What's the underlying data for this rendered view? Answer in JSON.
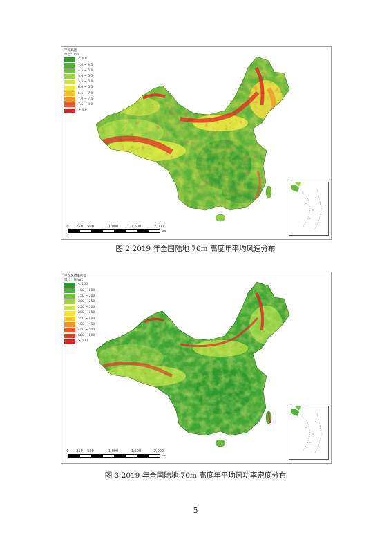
{
  "figure2": {
    "caption": "图 2   2019 年全国陆地 70m 高度年平均风速分布",
    "legend_title": "平均风速",
    "legend_unit": "单位：m/s",
    "legend": [
      {
        "label": "< 4.0",
        "color": "#2e9a2e"
      },
      {
        "label": "4.0 ~ 4.5",
        "color": "#4fb13a"
      },
      {
        "label": "4.5 ~ 5.0",
        "color": "#73c23c"
      },
      {
        "label": "5.0 ~ 5.5",
        "color": "#9fd43e"
      },
      {
        "label": "5.5 ~ 6.0",
        "color": "#cde33f"
      },
      {
        "label": "6.0 ~ 6.5",
        "color": "#f2e43b"
      },
      {
        "label": "6.5 ~ 7.0",
        "color": "#f5c02d"
      },
      {
        "label": "7.0 ~ 7.5",
        "color": "#f0922b"
      },
      {
        "label": "7.5 ~ 8.0",
        "color": "#e8592a"
      },
      {
        "label": "> 8.0",
        "color": "#dd1f1f"
      }
    ]
  },
  "figure3": {
    "caption": "图 3   2019 年全国陆地 70m 高度年平均风功率密度分布",
    "legend_title": "平均风功率密度",
    "legend_unit": "单位：W/m2",
    "legend": [
      {
        "label": "< 100",
        "color": "#2e9a2e"
      },
      {
        "label": "100 ~ 150",
        "color": "#4fb13a"
      },
      {
        "label": "150 ~ 200",
        "color": "#73c23c"
      },
      {
        "label": "200 ~ 250",
        "color": "#9fd43e"
      },
      {
        "label": "250 ~ 300",
        "color": "#cde33f"
      },
      {
        "label": "300 ~ 350",
        "color": "#f2e43b"
      },
      {
        "label": "350 ~ 400",
        "color": "#f5c02d"
      },
      {
        "label": "400 ~ 450",
        "color": "#f0922b"
      },
      {
        "label": "450 ~ 500",
        "color": "#e8592a"
      },
      {
        "label": "500 ~ 600",
        "color": "#e43a24"
      },
      {
        "label": "> 600",
        "color": "#dd1f1f"
      }
    ]
  },
  "scale_bar": {
    "ticks": [
      "0",
      "250",
      "500",
      "1,000",
      "1,500",
      "2,000"
    ],
    "unit": "km"
  },
  "page_number": "5"
}
